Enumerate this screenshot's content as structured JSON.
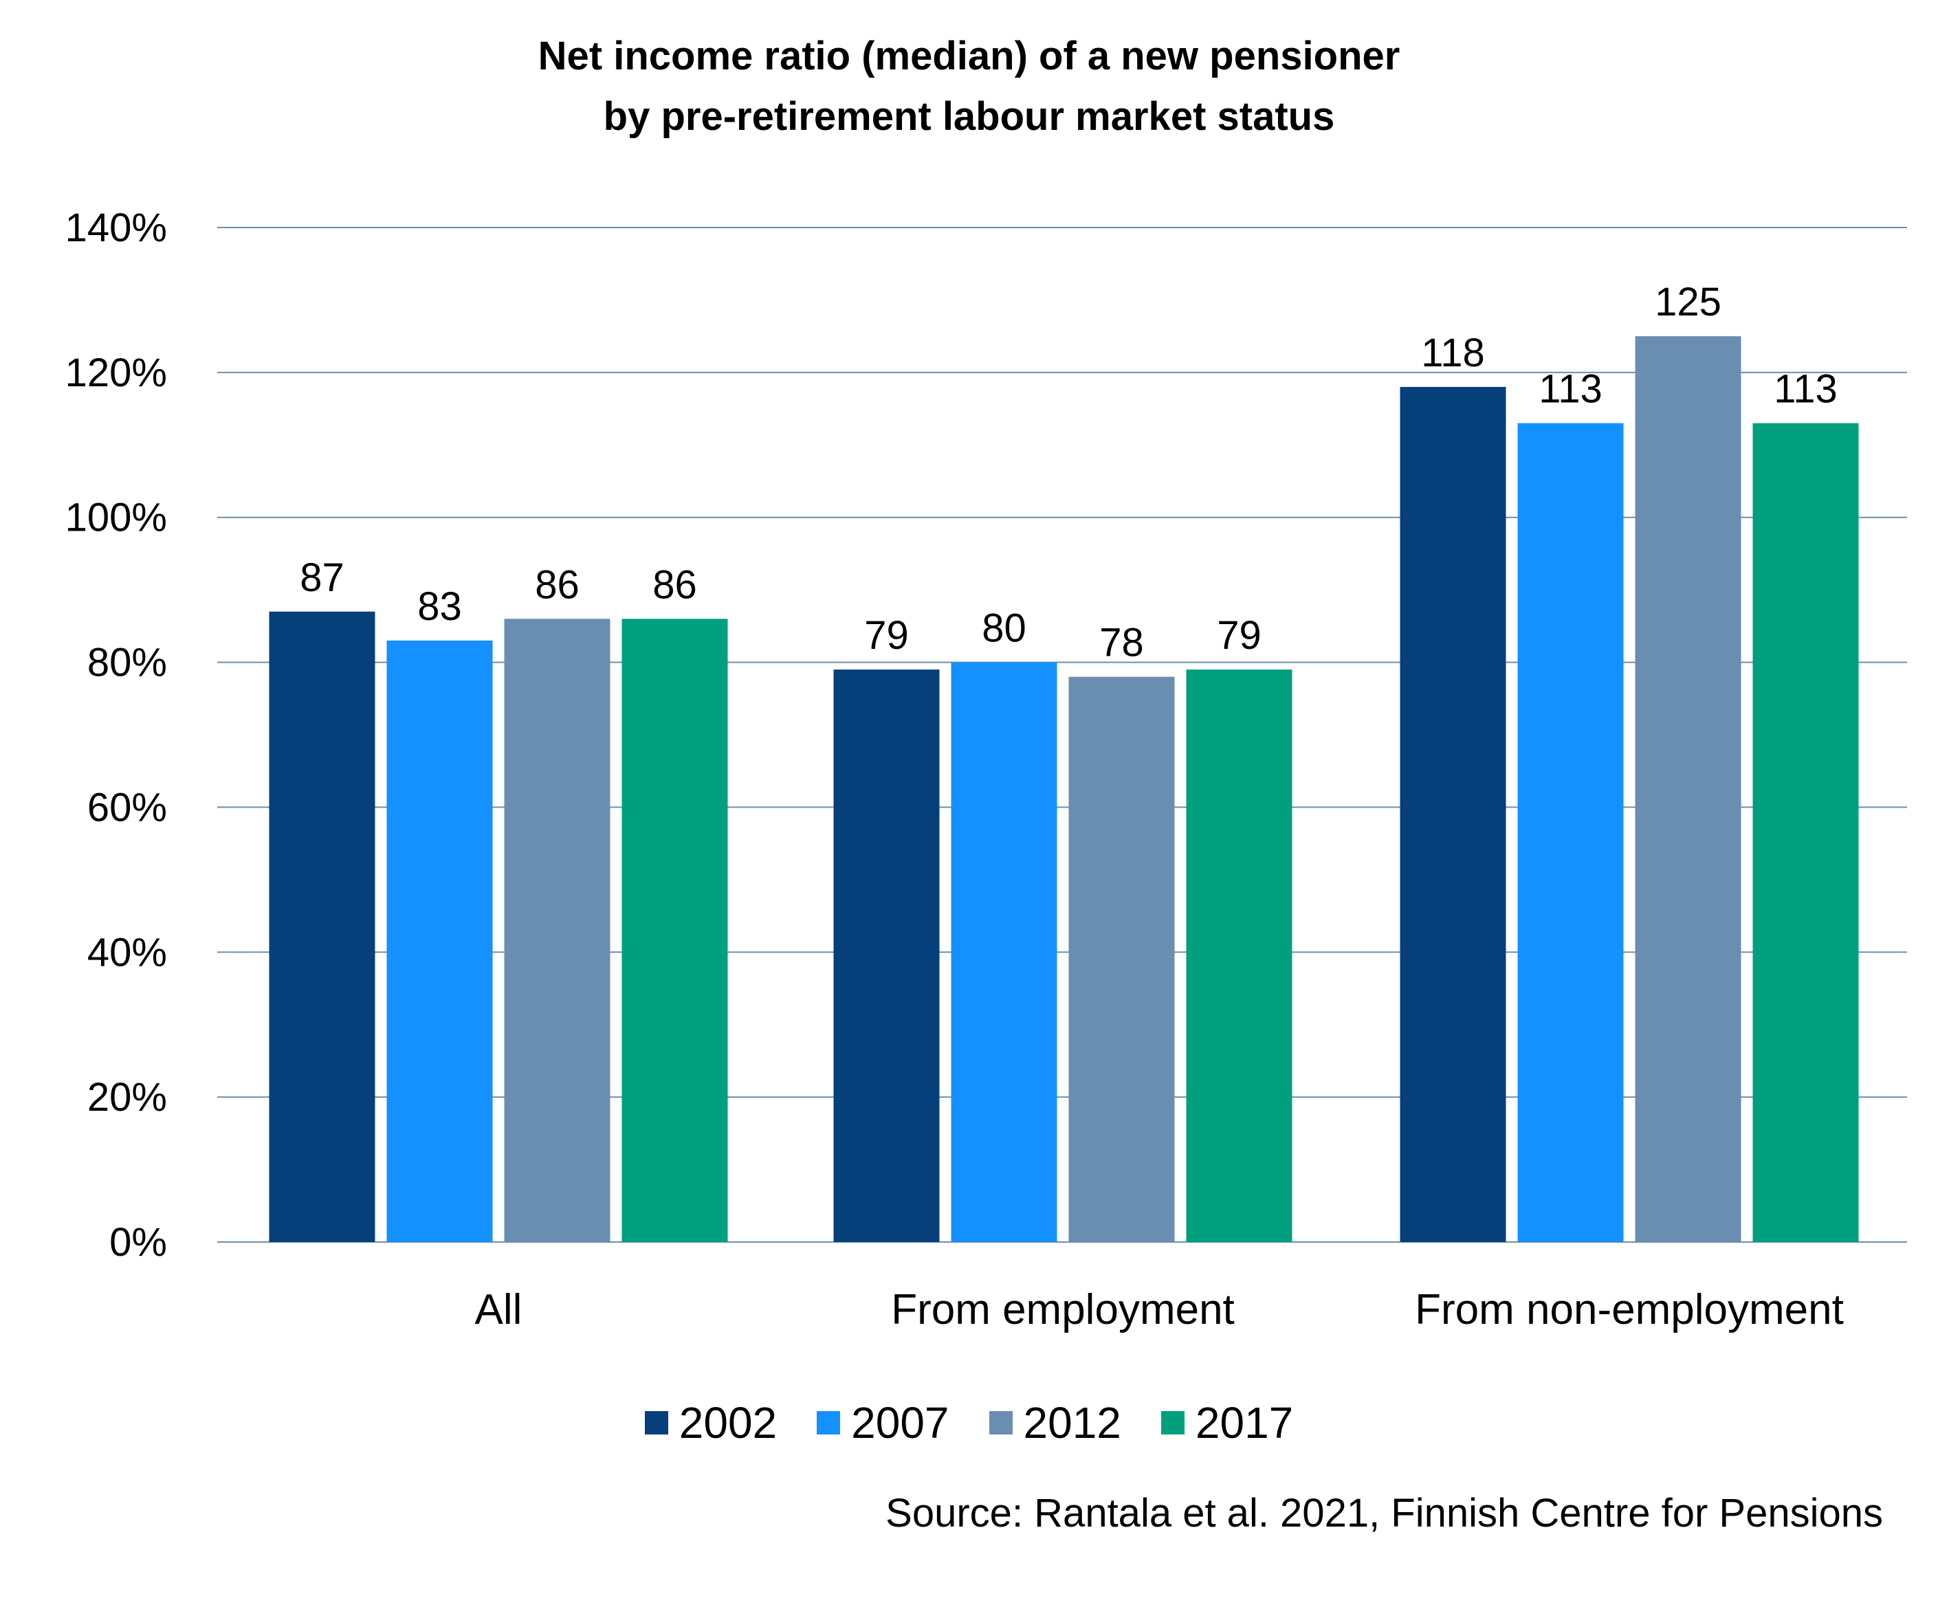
{
  "chart_data": {
    "type": "bar",
    "title_lines": [
      "Net income ratio (median) of a new pensioner",
      "by pre-retirement labour market status"
    ],
    "categories": [
      "All",
      "From employment",
      "From non-employment"
    ],
    "series": [
      {
        "name": "2002",
        "color": "#063f7a",
        "values": [
          87,
          79,
          118
        ]
      },
      {
        "name": "2007",
        "color": "#1590ff",
        "values": [
          83,
          80,
          113
        ]
      },
      {
        "name": "2012",
        "color": "#6a8db2",
        "values": [
          86,
          78,
          125
        ]
      },
      {
        "name": "2017",
        "color": "#00a07e",
        "values": [
          86,
          79,
          113
        ]
      }
    ],
    "y_ticks": [
      "0%",
      "20%",
      "40%",
      "60%",
      "80%",
      "100%",
      "120%",
      "140%"
    ],
    "ylim": [
      0,
      140
    ],
    "grid": true,
    "gridline_color": "#6f8fa8",
    "legend_position": "bottom",
    "source": "Source: Rantala et al. 2021, Finnish Centre for Pensions"
  }
}
